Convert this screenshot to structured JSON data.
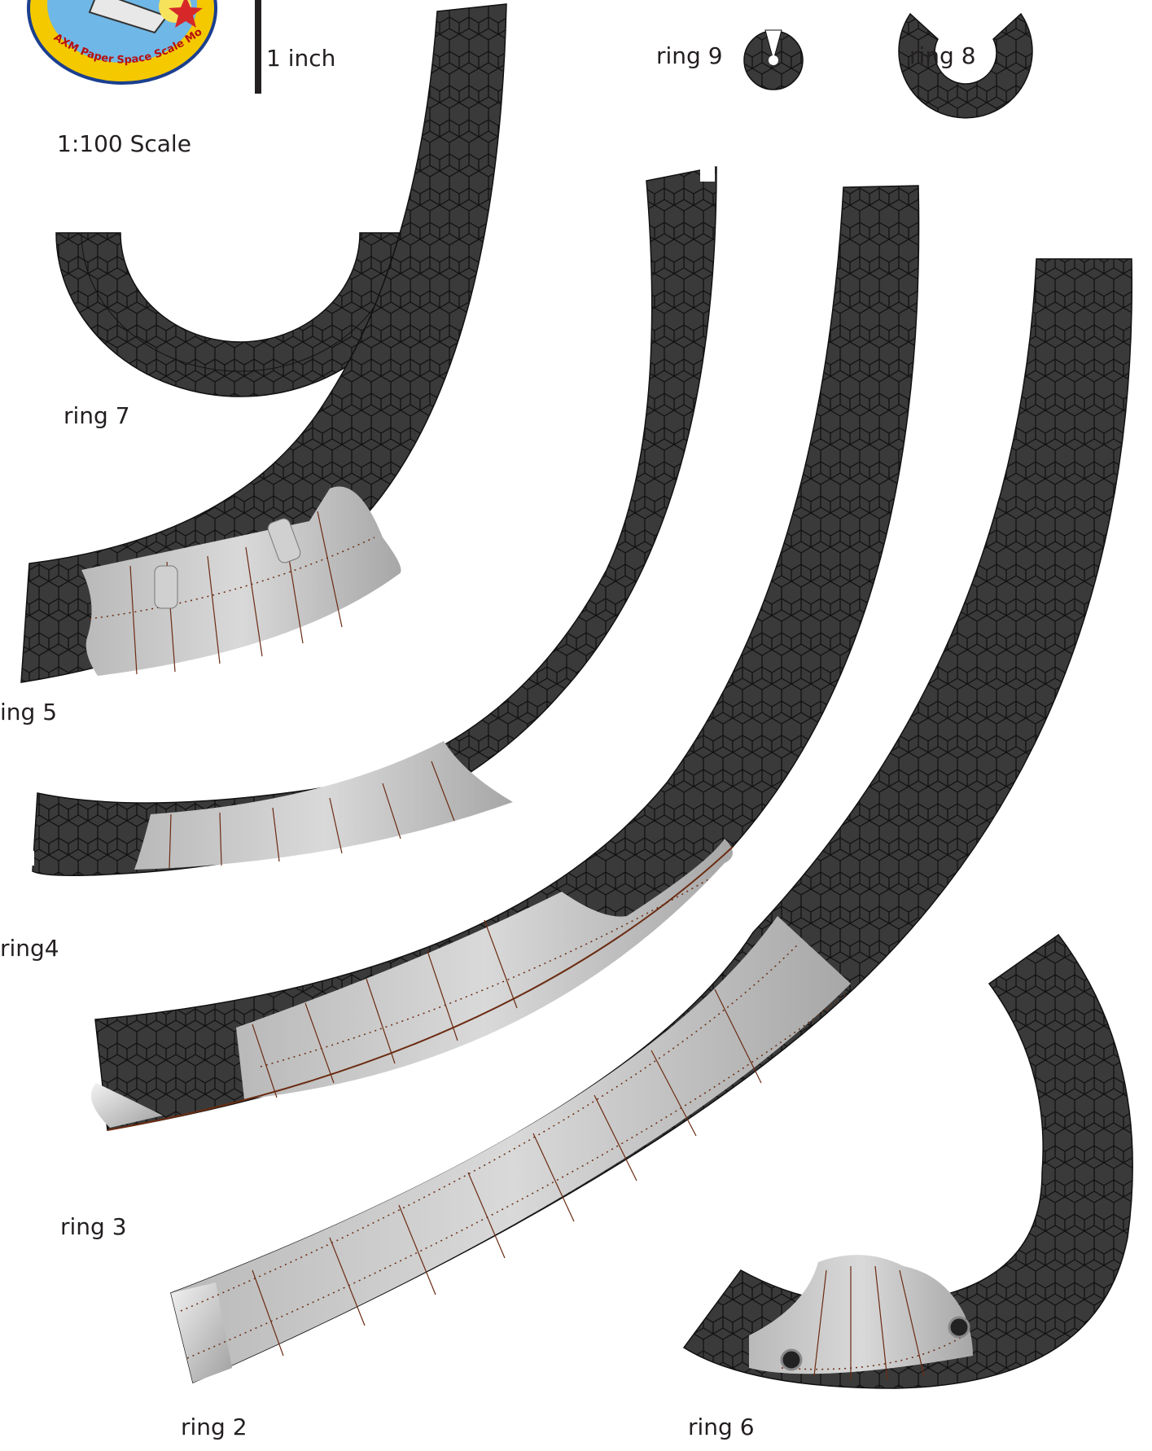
{
  "logo": {
    "text": "AXM Paper Space Scale Modeling"
  },
  "scale_bar": {
    "label": "1 inch"
  },
  "scale_note": "1:100 Scale",
  "rings": [
    {
      "id": "ring9",
      "label": "ring 9"
    },
    {
      "id": "ring8",
      "label": "ring 8"
    },
    {
      "id": "ring7",
      "label": "ring 7"
    },
    {
      "id": "ring5",
      "label": "ing 5"
    },
    {
      "id": "ring4",
      "label": "ring4"
    },
    {
      "id": "ring3",
      "label": "ring 3"
    },
    {
      "id": "ring2",
      "label": "ring 2"
    },
    {
      "id": "ring6",
      "label": "ring 6"
    }
  ],
  "colors": {
    "tile": "#3a3a3a",
    "tile_line": "#111111",
    "panel_light": "#e6e6e6",
    "panel_dark": "#a9a9a9",
    "seam": "#8b4a2b",
    "text": "#231f20"
  }
}
